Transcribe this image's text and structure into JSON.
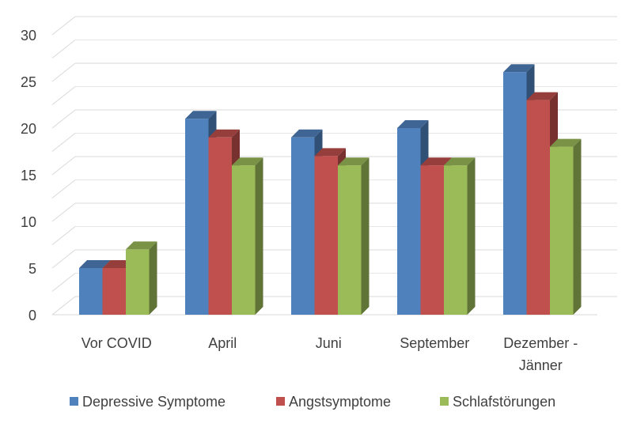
{
  "chart_data": {
    "type": "bar",
    "title": "",
    "xlabel": "",
    "ylabel": "",
    "ylim": [
      0,
      30
    ],
    "yticks": [
      0,
      5,
      10,
      15,
      20,
      25,
      30
    ],
    "grid": true,
    "legend_position": "bottom",
    "categories": [
      [
        "Vor COVID"
      ],
      [
        "April"
      ],
      [
        "Juni"
      ],
      [
        "September"
      ],
      [
        "Dezember -",
        "Jänner"
      ]
    ],
    "series": [
      {
        "name": "Depressive Symptome",
        "color": "#4F81BD",
        "values": [
          5,
          21,
          19,
          20,
          26
        ]
      },
      {
        "name": "Angstsymptome",
        "color": "#C0504D",
        "values": [
          5,
          19,
          17,
          16,
          23
        ]
      },
      {
        "name": "Schlafstörungen",
        "color": "#9BBB59",
        "values": [
          7,
          16,
          16,
          16,
          18
        ]
      }
    ]
  }
}
